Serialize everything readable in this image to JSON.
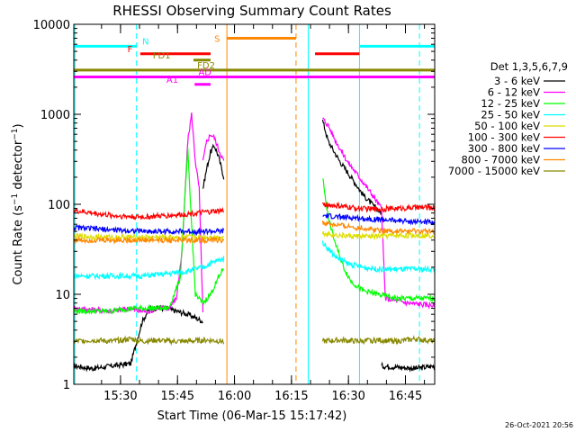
{
  "chart_data": {
    "type": "line",
    "title": "RHESSI Observing Summary Count Rates",
    "xlabel": "Start Time (06-Mar-15 15:17:42)",
    "ylabel": "Count Rate (s⁻¹ detector⁻¹)",
    "ylabel_main": "Count Rate (s",
    "ylabel_sup1": "−1",
    "ylabel_mid": " detector",
    "ylabel_sup2": "−1",
    "ylabel_end": ")",
    "x_unit": "minutes after 15:17:42",
    "xlim": [
      0,
      95
    ],
    "ylim": [
      1,
      10000
    ],
    "y_scale": "log",
    "x_ticks": [
      {
        "value": 12.3,
        "label": "15:30"
      },
      {
        "value": 27.3,
        "label": "15:45"
      },
      {
        "value": 42.3,
        "label": "16:00"
      },
      {
        "value": 57.3,
        "label": "16:15"
      },
      {
        "value": 72.3,
        "label": "16:30"
      },
      {
        "value": 87.3,
        "label": "16:45"
      }
    ],
    "y_ticks": [
      {
        "value": 1,
        "label": "1"
      },
      {
        "value": 10,
        "label": "10"
      },
      {
        "value": 100,
        "label": "100"
      },
      {
        "value": 1000,
        "label": "1000"
      },
      {
        "value": 10000,
        "label": "10000"
      }
    ],
    "legend_title": "Det 1,3,5,6,7,9",
    "legend_position": "right",
    "series": [
      {
        "name": "3 - 6 keV",
        "color": "#000000",
        "segments": [
          [
            [
              0,
              1.6
            ],
            [
              5,
              1.5
            ],
            [
              10,
              1.6
            ],
            [
              15,
              1.7
            ],
            [
              18,
              5
            ],
            [
              20,
              7
            ],
            [
              24,
              7
            ],
            [
              27,
              6.5
            ],
            [
              30,
              6
            ],
            [
              32,
              5.5
            ],
            [
              34,
              5
            ]
          ],
          [
            [
              34,
              150
            ],
            [
              35,
              250
            ],
            [
              36,
              380
            ],
            [
              37,
              450
            ],
            [
              38,
              350
            ],
            [
              39.5,
              200
            ]
          ],
          [
            [
              65.5,
              850
            ],
            [
              67,
              500
            ],
            [
              70,
              300
            ],
            [
              73,
              200
            ],
            [
              76,
              130
            ],
            [
              79,
              95
            ],
            [
              81,
              80
            ]
          ],
          [
            [
              81,
              1.6
            ],
            [
              90,
              1.5
            ],
            [
              95,
              1.6
            ]
          ]
        ]
      },
      {
        "name": "6 - 12 keV",
        "color": "#ff00ff",
        "segments": [
          [
            [
              0,
              7
            ],
            [
              10,
              6.5
            ],
            [
              15,
              7
            ],
            [
              17,
              6.5
            ],
            [
              20,
              6.5
            ],
            [
              22,
              7
            ],
            [
              25,
              7
            ],
            [
              27,
              9
            ],
            [
              28.5,
              30
            ],
            [
              30,
              500
            ],
            [
              31,
              1000
            ],
            [
              32,
              300
            ],
            [
              33,
              150
            ],
            [
              34,
              6
            ]
          ],
          [
            [
              34,
              300
            ],
            [
              35,
              500
            ],
            [
              36,
              600
            ],
            [
              37,
              550
            ],
            [
              38,
              420
            ],
            [
              39.5,
              300
            ]
          ],
          [
            [
              65.5,
              900
            ],
            [
              67,
              750
            ],
            [
              69,
              500
            ],
            [
              72,
              300
            ],
            [
              76,
              180
            ],
            [
              79,
              120
            ],
            [
              81,
              90
            ],
            [
              82,
              9
            ]
          ],
          [
            [
              82,
              9
            ],
            [
              88,
              8
            ],
            [
              95,
              7.5
            ]
          ]
        ]
      },
      {
        "name": "12 - 25 keV",
        "color": "#00ff00",
        "segments": [
          [
            [
              0,
              6.5
            ],
            [
              10,
              6.5
            ],
            [
              15,
              7
            ],
            [
              20,
              7
            ],
            [
              25,
              7
            ],
            [
              28,
              15
            ],
            [
              30,
              400
            ],
            [
              31,
              60
            ],
            [
              32,
              10
            ],
            [
              34,
              8
            ]
          ],
          [
            [
              34,
              8
            ],
            [
              36,
              10
            ],
            [
              38,
              15
            ],
            [
              39.5,
              20
            ]
          ],
          [
            [
              65.5,
              200
            ],
            [
              67,
              70
            ],
            [
              69,
              35
            ],
            [
              71,
              20
            ],
            [
              73,
              14
            ],
            [
              76,
              11
            ],
            [
              80,
              10
            ],
            [
              85,
              9
            ],
            [
              95,
              9
            ]
          ]
        ]
      },
      {
        "name": "25 - 50 keV",
        "color": "#00ffff",
        "segments": [
          [
            [
              0,
              16
            ],
            [
              10,
              16
            ],
            [
              18,
              16
            ],
            [
              25,
              17
            ],
            [
              30,
              18
            ],
            [
              32,
              19
            ],
            [
              34,
              20
            ],
            [
              36,
              22
            ],
            [
              38,
              24
            ],
            [
              39.5,
              25
            ]
          ],
          [
            [
              65.5,
              38
            ],
            [
              67,
              32
            ],
            [
              69,
              26
            ],
            [
              72,
              22
            ],
            [
              76,
              20
            ],
            [
              80,
              19
            ],
            [
              85,
              19
            ],
            [
              95,
              19
            ]
          ]
        ]
      },
      {
        "name": "50 - 100 keV",
        "color": "#dddd00",
        "segments": [
          [
            [
              0,
              44
            ],
            [
              10,
              43
            ],
            [
              20,
              43
            ],
            [
              30,
              43
            ],
            [
              39.5,
              43
            ]
          ],
          [
            [
              65.5,
              48
            ],
            [
              70,
              45
            ],
            [
              75,
              44
            ],
            [
              80,
              44
            ],
            [
              85,
              45
            ],
            [
              95,
              45
            ]
          ]
        ]
      },
      {
        "name": "100 - 300 keV",
        "color": "#ff0000",
        "segments": [
          [
            [
              0,
              85
            ],
            [
              10,
              75
            ],
            [
              18,
              72
            ],
            [
              25,
              75
            ],
            [
              30,
              78
            ],
            [
              35,
              82
            ],
            [
              39.5,
              85
            ]
          ],
          [
            [
              65.5,
              100
            ],
            [
              70,
              95
            ],
            [
              75,
              90
            ],
            [
              80,
              88
            ],
            [
              85,
              90
            ],
            [
              90,
              92
            ],
            [
              95,
              92
            ]
          ]
        ]
      },
      {
        "name": "300 - 800 keV",
        "color": "#0000ff",
        "segments": [
          [
            [
              0,
              55
            ],
            [
              10,
              52
            ],
            [
              20,
              50
            ],
            [
              30,
              50
            ],
            [
              39.5,
              50
            ]
          ],
          [
            [
              65.5,
              75
            ],
            [
              70,
              72
            ],
            [
              75,
              70
            ],
            [
              80,
              68
            ],
            [
              85,
              66
            ],
            [
              90,
              64
            ],
            [
              95,
              63
            ]
          ]
        ]
      },
      {
        "name": "800 - 7000 keV",
        "color": "#ff8800",
        "segments": [
          [
            [
              0,
              40
            ],
            [
              10,
              40
            ],
            [
              20,
              40
            ],
            [
              30,
              40
            ],
            [
              39.5,
              40
            ]
          ],
          [
            [
              65.5,
              62
            ],
            [
              70,
              58
            ],
            [
              75,
              55
            ],
            [
              80,
              52
            ],
            [
              85,
              50
            ],
            [
              90,
              50
            ],
            [
              95,
              50
            ]
          ]
        ]
      },
      {
        "name": "7000 - 15000 keV",
        "color": "#888800",
        "segments": [
          [
            [
              0,
              3
            ],
            [
              5,
              3.1
            ],
            [
              10,
              3
            ],
            [
              15,
              3.2
            ],
            [
              18,
              3
            ],
            [
              22,
              3.1
            ],
            [
              25,
              3
            ],
            [
              30,
              3
            ],
            [
              35,
              3.1
            ],
            [
              39.5,
              3
            ]
          ],
          [
            [
              65.5,
              3
            ],
            [
              70,
              3.1
            ],
            [
              75,
              3
            ],
            [
              80,
              3.1
            ],
            [
              85,
              3
            ],
            [
              90,
              3.2
            ],
            [
              95,
              3
            ]
          ]
        ]
      }
    ],
    "vertical_markers": [
      {
        "name": "cyan-dashed-1",
        "x": 16.5,
        "color": "#00ffff",
        "style": "dashed"
      },
      {
        "name": "cyan-solid-1",
        "x": 0.3,
        "color": "#00ffff",
        "style": "solid"
      },
      {
        "name": "cyan-dashed-2",
        "x": 91,
        "color": "#00ffff",
        "style": "dashed"
      },
      {
        "name": "cyan-solid-2",
        "x": 75.2,
        "color": "#00ffff",
        "style": "solid"
      },
      {
        "name": "cyan-solid-3",
        "x": 61.7,
        "color": "#00ffff",
        "style": "solid"
      },
      {
        "name": "orange-solid",
        "x": 40.3,
        "color": "#ff8800",
        "style": "solid"
      },
      {
        "name": "orange-dashed",
        "x": 58.5,
        "color": "#ff8800",
        "style": "dashed"
      }
    ],
    "flag_bars": [
      {
        "label": "N",
        "color": "#00ffff",
        "x0": 0,
        "x1": 16.5,
        "y": 5700,
        "label_x": 18,
        "label_side": "right"
      },
      {
        "label": "",
        "color": "#00ffff",
        "x0": 75.2,
        "x1": 95,
        "y": 5700,
        "label_x": 0,
        "label_side": "none"
      },
      {
        "label": "F",
        "color": "#ff0000",
        "x0": 17.5,
        "x1": 36,
        "y": 4700,
        "label_x": 15.5,
        "label_side": "left"
      },
      {
        "label": "",
        "color": "#ff0000",
        "x0": 63.5,
        "x1": 75.2,
        "y": 4700,
        "label_x": 0,
        "label_side": "none"
      },
      {
        "label": "S",
        "color": "#ff8800",
        "x0": 40.3,
        "x1": 58.5,
        "y": 7000,
        "label_x": 38.5,
        "label_side": "left"
      },
      {
        "label": "FD1",
        "color": "#888800",
        "x0": 31.5,
        "x1": 36,
        "y": 4000,
        "label_x": 25.5,
        "label_side": "left"
      },
      {
        "label": "FD2",
        "color": "#888800",
        "x0": 0,
        "x1": 95,
        "y": 3100,
        "label_x": 32.5,
        "label_side": "right"
      },
      {
        "label": "AD",
        "color": "#ff00ff",
        "x0": 0,
        "x1": 95,
        "y": 2600,
        "label_x": 32.8,
        "label_side": "right"
      },
      {
        "label": "A1",
        "color": "#ff00ff",
        "x0": 31.8,
        "x1": 36,
        "y": 2150,
        "label_x": 27.5,
        "label_side": "left"
      }
    ],
    "timestamp": "26-Oct-2021 20:56"
  }
}
